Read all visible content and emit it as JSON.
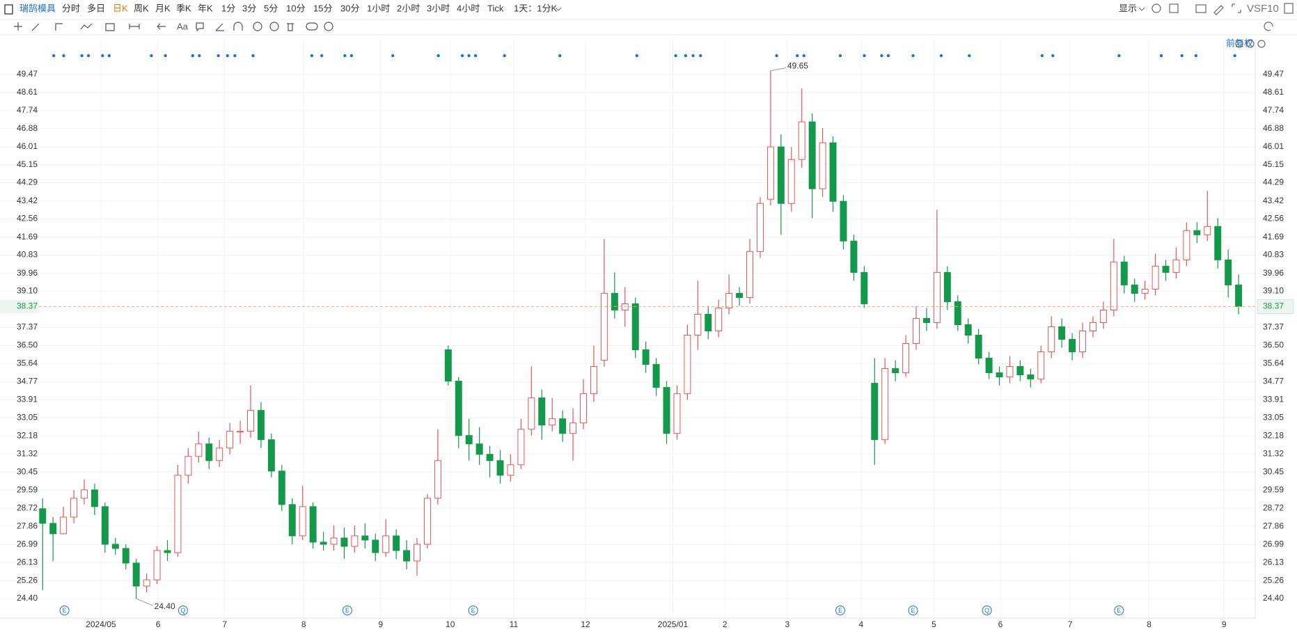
{
  "toolbar": {
    "stock": "瑞鹄模具",
    "periods": [
      "分时",
      "多日",
      "日K",
      "周K",
      "月K",
      "季K",
      "年K",
      "1分",
      "3分",
      "5分",
      "10分",
      "15分",
      "30分",
      "1小时",
      "2小时",
      "3小时",
      "4小时",
      "Tick",
      "1天：1分K"
    ],
    "active_index": 2,
    "display": "显示",
    "compare": "VS",
    "f10": "F10",
    "text_tool": "Aa"
  },
  "chart_data": {
    "type": "candlestick",
    "adjust": "前复权",
    "open": [
      28.7,
      28.0,
      27.5,
      28.3,
      29.2,
      29.6,
      28.8,
      27.0,
      26.8,
      26.1,
      25.0,
      25.3,
      26.7,
      26.6,
      30.3,
      31.2,
      31.8,
      31.0,
      31.6,
      32.4,
      32.4,
      33.4,
      32.0,
      30.5,
      28.9,
      27.4,
      28.8,
      27.1,
      27.0,
      27.3,
      26.9,
      27.4,
      27.2,
      26.6,
      27.4,
      26.7,
      26.2,
      27.0,
      29.2,
      36.3,
      34.8,
      32.2,
      31.8,
      31.3,
      31.0,
      30.3,
      30.8,
      32.5,
      34.0,
      32.7,
      33.0,
      32.3,
      32.8,
      34.2,
      35.8,
      39.0,
      38.2,
      38.5,
      36.3,
      35.6,
      34.5,
      32.3,
      34.2,
      37.0,
      38.0,
      37.2,
      38.3,
      39.0,
      38.8,
      41.0,
      43.5,
      46.0,
      43.3,
      45.4,
      47.2,
      44.0,
      46.2,
      43.4,
      41.5,
      40.0,
      34.7,
      32.0,
      35.4,
      35.2,
      36.6,
      37.8,
      37.6,
      40.0,
      38.6,
      37.5,
      37.0,
      35.9,
      35.2,
      35.0,
      35.5,
      35.1,
      34.9,
      36.2,
      37.4,
      36.8,
      36.2,
      37.2,
      37.6,
      38.2,
      40.5,
      39.4,
      39.0,
      39.2,
      40.3,
      40.0,
      40.6,
      42.0,
      41.8,
      42.2,
      40.6,
      39.4
    ],
    "high": [
      29.2,
      28.3,
      28.8,
      29.6,
      30.1,
      29.9,
      29.0,
      27.3,
      27.0,
      26.3,
      25.6,
      26.9,
      27.2,
      30.8,
      31.6,
      32.4,
      32.1,
      32.0,
      32.8,
      32.9,
      34.6,
      33.8,
      32.3,
      30.8,
      29.2,
      29.8,
      29.0,
      27.6,
      27.9,
      27.8,
      27.9,
      28.0,
      27.5,
      28.2,
      27.7,
      27.2,
      27.3,
      29.4,
      32.5,
      36.5,
      35.0,
      33.0,
      32.6,
      31.7,
      31.5,
      31.3,
      33.0,
      35.5,
      34.4,
      34.0,
      33.4,
      33.5,
      34.9,
      36.5,
      41.6,
      40.0,
      39.3,
      38.8,
      36.7,
      35.9,
      34.8,
      34.6,
      37.5,
      39.6,
      38.4,
      38.7,
      39.9,
      39.3,
      41.6,
      43.6,
      49.65,
      46.6,
      46.0,
      48.8,
      47.6,
      46.9,
      46.5,
      43.7,
      41.8,
      40.3,
      35.9,
      35.9,
      35.8,
      37.0,
      38.4,
      38.3,
      43.0,
      40.3,
      38.9,
      37.8,
      37.3,
      36.2,
      35.5,
      36.0,
      35.8,
      35.4,
      36.5,
      37.9,
      37.8,
      37.1,
      37.6,
      37.9,
      38.6,
      41.6,
      40.8,
      39.7,
      39.6,
      40.9,
      40.6,
      41.2,
      42.4,
      42.4,
      43.9,
      42.6,
      41.1,
      39.9
    ],
    "low": [
      24.8,
      26.2,
      27.7,
      28.0,
      28.9,
      28.4,
      26.6,
      26.5,
      25.8,
      24.4,
      24.7,
      25.1,
      26.2,
      26.4,
      29.9,
      30.9,
      30.6,
      30.7,
      31.3,
      31.8,
      32.1,
      31.6,
      30.2,
      28.6,
      27.0,
      27.2,
      26.8,
      26.7,
      26.7,
      26.3,
      26.6,
      26.8,
      26.2,
      26.4,
      26.3,
      25.8,
      25.5,
      26.8,
      28.9,
      34.6,
      31.6,
      31.0,
      30.8,
      30.2,
      29.9,
      30.0,
      30.6,
      32.2,
      32.0,
      32.4,
      31.9,
      31.0,
      32.5,
      33.8,
      35.5,
      37.8,
      37.4,
      35.9,
      35.2,
      34.1,
      31.8,
      32.0,
      33.9,
      36.3,
      36.8,
      36.9,
      38.0,
      38.4,
      38.5,
      40.7,
      43.2,
      41.8,
      42.9,
      45.0,
      42.6,
      43.6,
      42.9,
      41.1,
      39.6,
      38.3,
      30.8,
      31.8,
      34.8,
      35.0,
      36.3,
      37.2,
      37.3,
      38.2,
      37.2,
      36.6,
      35.6,
      34.9,
      34.6,
      34.7,
      34.8,
      34.5,
      34.7,
      35.9,
      36.4,
      35.8,
      35.9,
      36.9,
      37.3,
      37.9,
      39.0,
      38.6,
      38.7,
      38.9,
      39.6,
      39.7,
      40.3,
      41.4,
      41.5,
      40.2,
      38.8,
      38.0
    ],
    "close": [
      28.0,
      27.5,
      28.3,
      29.2,
      29.6,
      28.8,
      27.0,
      26.8,
      26.1,
      25.0,
      25.3,
      26.7,
      26.6,
      30.3,
      31.2,
      31.8,
      31.0,
      31.6,
      32.4,
      32.4,
      33.4,
      32.0,
      30.5,
      28.9,
      27.4,
      28.8,
      27.1,
      27.0,
      27.3,
      26.9,
      27.4,
      27.2,
      26.6,
      27.4,
      26.7,
      26.2,
      27.0,
      29.2,
      31.0,
      34.8,
      32.2,
      31.8,
      31.3,
      31.0,
      30.3,
      30.8,
      32.5,
      34.0,
      32.7,
      33.0,
      32.3,
      32.8,
      34.2,
      35.5,
      39.0,
      38.2,
      38.5,
      36.3,
      35.6,
      34.5,
      32.3,
      34.2,
      37.0,
      38.0,
      37.2,
      38.3,
      39.0,
      38.8,
      41.0,
      43.3,
      46.0,
      43.3,
      45.4,
      47.2,
      44.0,
      46.2,
      43.4,
      41.5,
      40.0,
      38.5,
      32.0,
      35.4,
      35.2,
      36.6,
      37.8,
      37.6,
      40.0,
      38.6,
      37.5,
      37.0,
      35.9,
      35.2,
      35.0,
      35.5,
      35.1,
      34.9,
      36.2,
      37.4,
      36.8,
      36.2,
      37.2,
      37.6,
      38.2,
      40.5,
      39.4,
      39.0,
      39.2,
      40.3,
      40.0,
      40.6,
      42.0,
      41.8,
      42.2,
      40.6,
      39.4,
      38.37
    ],
    "up_color": "#eb5454",
    "down_color": "#12994a",
    "last_color": "#f4a47a",
    "xlim": [
      -4.1,
      116.6
    ],
    "xticks": [
      {
        "value": 5.6,
        "label": "2024/05"
      },
      {
        "value": 11.1,
        "label": "6"
      },
      {
        "value": 17.5,
        "label": "7"
      },
      {
        "value": 25.1,
        "label": "8"
      },
      {
        "value": 32.5,
        "label": "9"
      },
      {
        "value": 39.2,
        "label": "10"
      },
      {
        "value": 45.3,
        "label": "11"
      },
      {
        "value": 52.2,
        "label": "12"
      },
      {
        "value": 60.6,
        "label": "2025/01"
      },
      {
        "value": 65.6,
        "label": "2"
      },
      {
        "value": 71.6,
        "label": "3"
      },
      {
        "value": 78.7,
        "label": "4"
      },
      {
        "value": 85.7,
        "label": "5"
      },
      {
        "value": 92.1,
        "label": "6"
      },
      {
        "value": 98.8,
        "label": "7"
      },
      {
        "value": 106.4,
        "label": "8"
      },
      {
        "value": 113.6,
        "label": "9"
      }
    ],
    "ylim": [
      23.47,
      51.13
    ],
    "yticks": [
      {
        "value": 24.4,
        "label": "24.40"
      },
      25.26,
      26.13,
      26.99,
      27.86,
      28.72,
      29.59,
      30.45,
      31.32,
      32.18,
      33.05,
      33.91,
      34.77,
      35.64,
      {
        "value": 36.5,
        "label": "36.50"
      },
      37.37,
      {
        "value": 39.1,
        "label": "39.10"
      },
      39.96,
      40.83,
      41.69,
      42.56,
      43.42,
      44.29,
      45.15,
      46.01,
      46.88,
      47.74,
      48.61,
      49.47
    ],
    "grid": true,
    "annotations": {
      "high": 49.65,
      "low": {
        "value": 24.4,
        "label": "24.40"
      }
    },
    "events": [
      {
        "x": 2.1,
        "label": "E"
      },
      {
        "x": 13.5,
        "label": "Q"
      },
      {
        "x": 29.3,
        "label": "E"
      },
      {
        "x": 41.4,
        "label": "E"
      },
      {
        "x": 76.7,
        "label": "E"
      },
      {
        "x": 83.7,
        "label": "E"
      },
      {
        "x": 90.8,
        "label": "Q"
      },
      {
        "x": 103.5,
        "label": "E"
      }
    ]
  }
}
